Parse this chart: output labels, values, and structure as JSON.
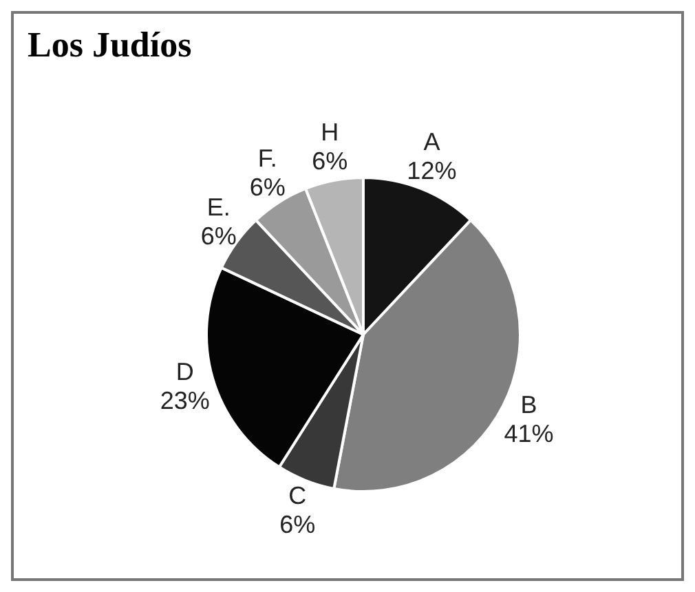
{
  "chart_data": {
    "type": "pie",
    "title": "Los Judíos",
    "categories": [
      "A",
      "B",
      "C",
      "D",
      "E.",
      "F.",
      "H"
    ],
    "values": [
      12,
      41,
      6,
      23,
      6,
      6,
      6
    ],
    "value_labels": [
      "12%",
      "41%",
      "6%",
      "23%",
      "6%",
      "6%",
      "6%"
    ],
    "colors": [
      "#141414",
      "#7f7f7f",
      "#383838",
      "#050505",
      "#565656",
      "#9a9a9a",
      "#b5b5b5"
    ],
    "legend": false
  }
}
